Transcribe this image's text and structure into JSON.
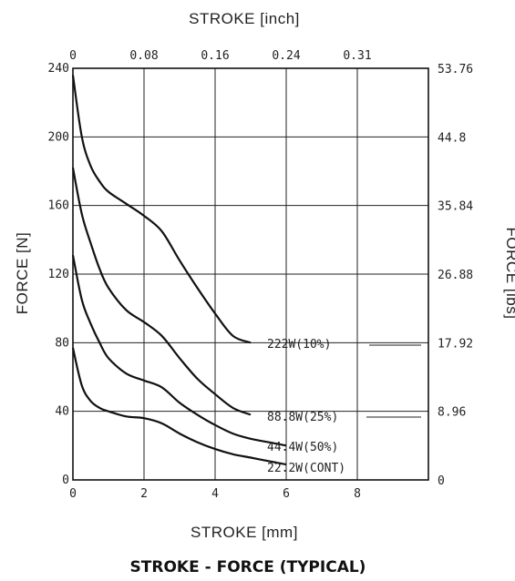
{
  "chart_data": {
    "type": "line",
    "title": "STROKE - FORCE (TYPICAL)",
    "xlabel": "STROKE [mm]",
    "x2label": "STROKE [inch]",
    "ylabel": "FORCE [N]",
    "y2label": "FORCE [lbs]",
    "xlim": [
      0,
      10
    ],
    "ylim": [
      0,
      240
    ],
    "x_ticks": [
      0,
      2,
      4,
      6,
      8
    ],
    "y_ticks": [
      0,
      40,
      80,
      120,
      160,
      200,
      240
    ],
    "x2_ticks": [
      {
        "x": 0,
        "label": "0"
      },
      {
        "x": 2,
        "label": "0.08"
      },
      {
        "x": 4,
        "label": "0.16"
      },
      {
        "x": 6,
        "label": "0.24"
      },
      {
        "x": 8,
        "label": "0.31"
      }
    ],
    "y2_ticks": [
      {
        "y": 0,
        "label": "0"
      },
      {
        "y": 40,
        "label": "8.96"
      },
      {
        "y": 80,
        "label": "17.92"
      },
      {
        "y": 120,
        "label": "26.88"
      },
      {
        "y": 160,
        "label": "35.84"
      },
      {
        "y": 200,
        "label": "44.8"
      },
      {
        "y": 240,
        "label": "53.76"
      }
    ],
    "grid": true,
    "series": [
      {
        "name": "222W(10%)",
        "x": [
          0,
          0.25,
          0.5,
          0.75,
          1.0,
          1.5,
          2.0,
          2.5,
          3.0,
          3.5,
          4.0,
          4.5,
          5.0
        ],
        "y": [
          236,
          200,
          183,
          174,
          168,
          161,
          154,
          145,
          128,
          112,
          97,
          84,
          80
        ]
      },
      {
        "name": "88.8W(25%)",
        "x": [
          0,
          0.25,
          0.5,
          0.75,
          1.0,
          1.5,
          2.0,
          2.5,
          3.0,
          3.5,
          4.0,
          4.5,
          5.0
        ],
        "y": [
          182,
          155,
          138,
          123,
          112,
          99,
          92,
          84,
          71,
          59,
          50,
          42,
          38
        ]
      },
      {
        "name": "44.4W(50%)",
        "x": [
          0,
          0.25,
          0.5,
          0.75,
          1.0,
          1.5,
          2.0,
          2.5,
          3.0,
          3.5,
          4.0,
          4.5,
          5.0,
          5.5,
          6.0
        ],
        "y": [
          131,
          105,
          91,
          80,
          71,
          62,
          58,
          54,
          45,
          38,
          32,
          27,
          24,
          22,
          20
        ]
      },
      {
        "name": "22.2W(CONT)",
        "x": [
          0,
          0.25,
          0.5,
          0.75,
          1.0,
          1.5,
          2.0,
          2.5,
          3.0,
          3.5,
          4.0,
          4.5,
          5.0,
          5.5,
          6.0
        ],
        "y": [
          77,
          55,
          46,
          42,
          40,
          37,
          36,
          33,
          27,
          22,
          18,
          15,
          13,
          11,
          9
        ]
      }
    ]
  }
}
